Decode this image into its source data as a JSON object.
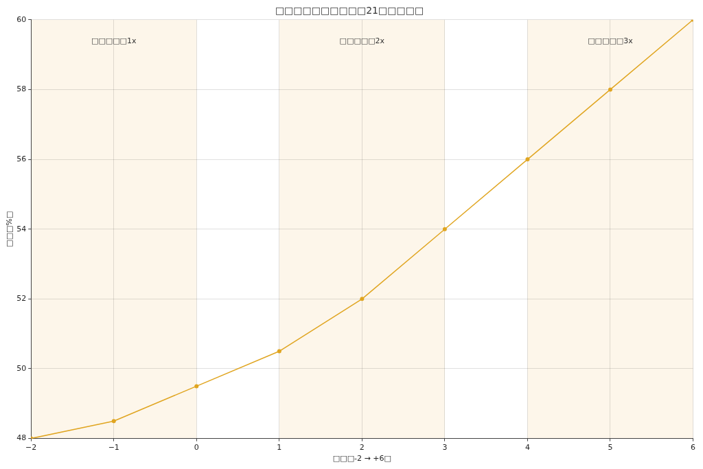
{
  "chart_data": {
    "type": "line",
    "title": "□□□□□□□□□□21□□□□□",
    "xlabel": "□□□-2 → +6□",
    "ylabel": "□□□%□",
    "x": [
      -2,
      -1,
      0,
      1,
      2,
      3,
      4,
      5,
      6
    ],
    "series": [
      {
        "color": "#e0a520",
        "values": [
          48,
          48.5,
          49.5,
          50.5,
          52,
          54,
          56,
          58,
          60
        ]
      }
    ],
    "xlim": [
      -2,
      6
    ],
    "xticks": [
      {
        "value": -2,
        "label": "−2"
      },
      {
        "value": -1,
        "label": "−1"
      },
      0,
      1,
      2,
      3,
      4,
      5,
      6
    ],
    "ylim": [
      48,
      60
    ],
    "yticks": [
      48,
      50,
      52,
      54,
      56,
      58,
      60
    ],
    "bands": [
      {
        "axis": "x",
        "from": -2,
        "to": 0,
        "label": "□□□□□1x",
        "color": "#fdf6ea"
      },
      {
        "axis": "x",
        "from": 1,
        "to": 3,
        "label": "□□□□□2x",
        "color": "#fdf6ea"
      },
      {
        "axis": "x",
        "from": 4,
        "to": 6,
        "label": "□□□□□3x",
        "color": "#fdf6ea"
      }
    ],
    "grid": true,
    "marker": "circle",
    "line_style": "solid",
    "legend": false
  }
}
